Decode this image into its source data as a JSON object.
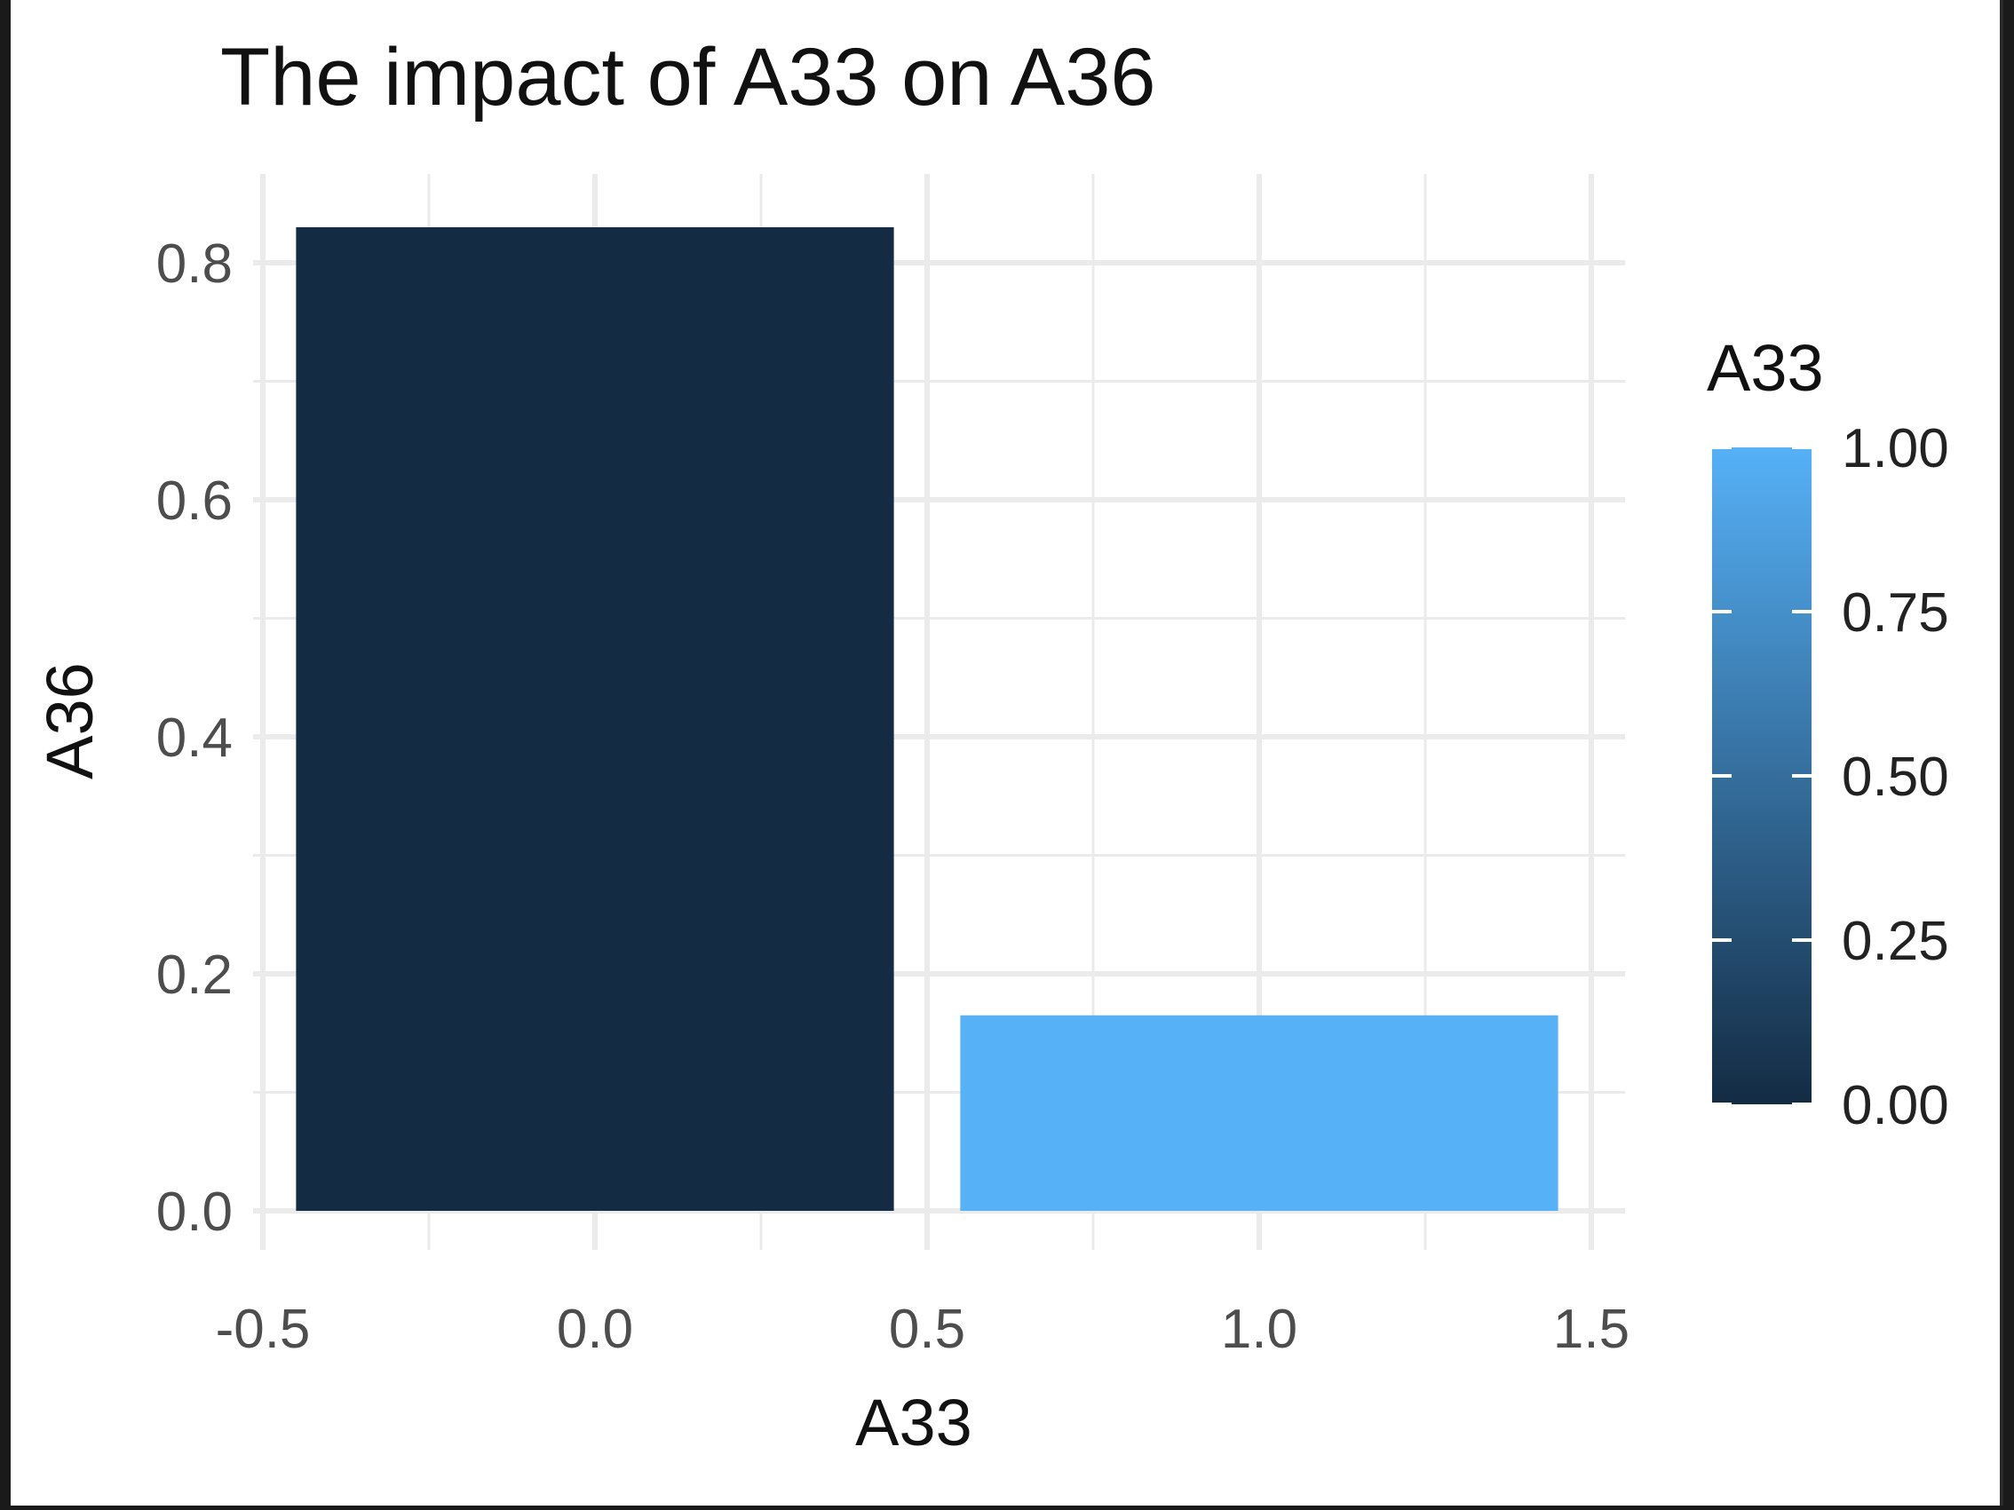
{
  "chart_data": {
    "type": "bar",
    "title": "The impact of A33 on A36",
    "xlabel": "A33",
    "ylabel": "A36",
    "x": [
      0,
      1
    ],
    "values": [
      0.83,
      0.165
    ],
    "fill_values": [
      0,
      1
    ],
    "bar_width": 0.9,
    "xlim": [
      -0.5,
      1.5
    ],
    "ylim": [
      0,
      0.83
    ],
    "x_ticks": [
      -0.5,
      0.0,
      0.5,
      1.0,
      1.5
    ],
    "x_tick_labels": [
      "-0.5",
      "0.0",
      "0.5",
      "1.0",
      "1.5"
    ],
    "y_ticks": [
      0.0,
      0.2,
      0.4,
      0.6,
      0.8
    ],
    "y_tick_labels": [
      "0.0",
      "0.2",
      "0.4",
      "0.6",
      "0.8"
    ],
    "grid": true,
    "legend": {
      "title": "A33",
      "type": "colorbar",
      "position": "right",
      "ticks": [
        0,
        0.25,
        0.5,
        0.75,
        1.0
      ],
      "tick_labels": [
        "0.00",
        "0.25",
        "0.50",
        "0.75",
        "1.00"
      ],
      "color_low": "#132B43",
      "color_high": "#56B1F7"
    }
  },
  "colors": {
    "grid": "#ebebeb",
    "background": "#ffffff"
  }
}
